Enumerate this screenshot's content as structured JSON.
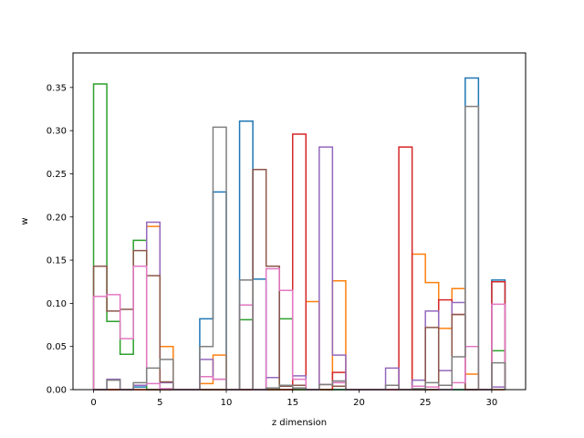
{
  "chart_data": {
    "type": "step",
    "xlabel": "z dimension",
    "ylabel": "w",
    "xlim": [
      -1.55,
      32.55
    ],
    "ylim": [
      0,
      0.39
    ],
    "xticks": [
      0,
      5,
      10,
      15,
      20,
      25,
      30
    ],
    "xtick_labels": [
      "0",
      "5",
      "10",
      "15",
      "20",
      "25",
      "30"
    ],
    "yticks": [
      0.0,
      0.05,
      0.1,
      0.15,
      0.2,
      0.25,
      0.3,
      0.35
    ],
    "ytick_labels": [
      "0.00",
      "0.05",
      "0.10",
      "0.15",
      "0.20",
      "0.25",
      "0.30",
      "0.35"
    ],
    "grid": false,
    "x_edges": [
      0,
      1,
      2,
      3,
      4,
      5,
      6,
      7,
      8,
      9,
      10,
      11,
      12,
      13,
      14,
      15,
      16,
      17,
      18,
      19,
      20,
      21,
      22,
      23,
      24,
      25,
      26,
      27,
      28,
      29,
      30,
      31
    ],
    "series": [
      {
        "color": "#1f77b4",
        "values": [
          0,
          0,
          0,
          0.003,
          0,
          0,
          0,
          0,
          0.082,
          0.229,
          0,
          0.311,
          0.128,
          0,
          0,
          0,
          0,
          0,
          0,
          0,
          0,
          0,
          0,
          0,
          0,
          0,
          0,
          0,
          0.361,
          0,
          0.127
        ]
      },
      {
        "color": "#ff7f0e",
        "values": [
          0,
          0,
          0,
          0,
          0.189,
          0.05,
          0,
          0,
          0.007,
          0.04,
          0,
          0,
          0,
          0,
          0,
          0,
          0.102,
          0,
          0.126,
          0,
          0,
          0,
          0,
          0,
          0.157,
          0.124,
          0.071,
          0.117,
          0.018,
          0,
          0
        ]
      },
      {
        "color": "#2ca02c",
        "values": [
          0.354,
          0.079,
          0.041,
          0.173,
          0,
          0,
          0,
          0,
          0,
          0,
          0,
          0.081,
          0,
          0,
          0.082,
          0,
          0,
          0,
          0,
          0,
          0,
          0,
          0,
          0,
          0,
          0,
          0,
          0,
          0,
          0,
          0.045
        ]
      },
      {
        "color": "#d62728",
        "values": [
          0,
          0,
          0,
          0,
          0,
          0,
          0,
          0,
          0,
          0,
          0,
          0,
          0,
          0,
          0,
          0.296,
          0,
          0,
          0.02,
          0,
          0,
          0,
          0,
          0.281,
          0,
          0,
          0.104,
          0.087,
          0,
          0,
          0.125
        ]
      },
      {
        "color": "#9467bd",
        "values": [
          0,
          0.012,
          0,
          0.005,
          0.194,
          0.008,
          0,
          0,
          0.035,
          0.012,
          0,
          0,
          0,
          0.014,
          0.115,
          0.016,
          0,
          0.281,
          0.04,
          0,
          0,
          0,
          0.025,
          0,
          0.011,
          0.091,
          0.022,
          0.101,
          0,
          0,
          0.003
        ]
      },
      {
        "color": "#8c564b",
        "values": [
          0.143,
          0.091,
          0.093,
          0.161,
          0.132,
          0.009,
          0,
          0,
          0,
          0,
          0,
          0,
          0.255,
          0.143,
          0.004,
          0.005,
          0,
          0.006,
          0.004,
          0,
          0,
          0,
          0,
          0,
          0,
          0.072,
          0.005,
          0.087,
          0,
          0,
          0
        ]
      },
      {
        "color": "#e377c2",
        "values": [
          0.108,
          0.11,
          0.059,
          0.143,
          0.007,
          0.001,
          0,
          0,
          0.015,
          0.012,
          0,
          0.098,
          0,
          0.14,
          0.115,
          0.012,
          0,
          0.006,
          0.008,
          0,
          0,
          0,
          0,
          0,
          0.004,
          0.003,
          0,
          0.008,
          0.05,
          0,
          0.099
        ]
      },
      {
        "color": "#7f7f7f",
        "values": [
          0,
          0.011,
          0,
          0.008,
          0.025,
          0.035,
          0,
          0,
          0.05,
          0.304,
          0,
          0.127,
          0,
          0.002,
          0.005,
          0.002,
          0,
          0.006,
          0.01,
          0,
          0,
          0,
          0.005,
          0,
          0.001,
          0.008,
          0.005,
          0.038,
          0.328,
          0,
          0.031
        ]
      }
    ]
  }
}
